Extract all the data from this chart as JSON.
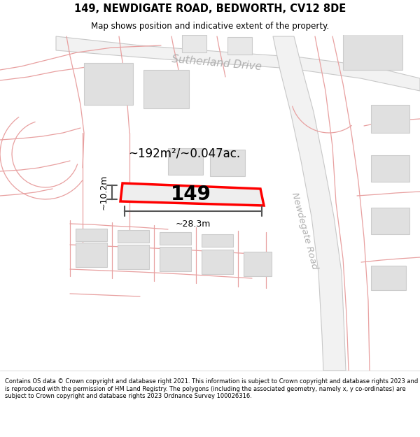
{
  "title": "149, NEWDIGATE ROAD, BEDWORTH, CV12 8DE",
  "subtitle": "Map shows position and indicative extent of the property.",
  "footer": "Contains OS data © Crown copyright and database right 2021. This information is subject to Crown copyright and database rights 2023 and is reproduced with the permission of HM Land Registry. The polygons (including the associated geometry, namely x, y co-ordinates) are subject to Crown copyright and database rights 2023 Ordnance Survey 100026316.",
  "label_149": "149",
  "area_label": "~192m²/~0.047ac.",
  "dim_width": "~28.3m",
  "dim_height": "~10.2m",
  "road_label_1": "Sutherland Drive",
  "road_label_2": "Newdegate Road",
  "road_line_color": "#e8a0a0",
  "road_fill_color": "#fce8e8",
  "road_centerline_color": "#cccccc",
  "building_fill": "#e0e0e0",
  "building_edge": "#cccccc",
  "highlight_fill": "#eeeeee",
  "highlight_edge": "#ff0000",
  "dim_color": "#555555",
  "text_road_color": "#bbbbbb"
}
